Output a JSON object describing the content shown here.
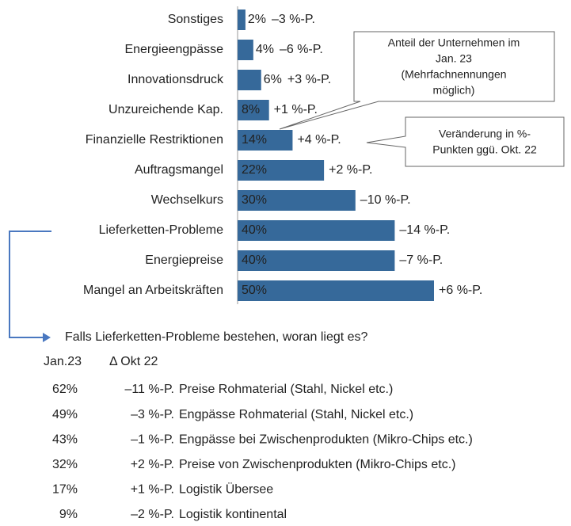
{
  "chart_data": {
    "type": "bar",
    "orientation": "horizontal",
    "categories": [
      "Sonstiges",
      "Energieengpässe",
      "Innovationsdruck",
      "Unzureichende Kap.",
      "Finanzielle Restriktionen",
      "Auftragsmangel",
      "Wechselkurs",
      "Lieferketten-Probleme",
      "Energiepreise",
      "Mangel an Arbeitskräften"
    ],
    "values": [
      2,
      4,
      6,
      8,
      14,
      22,
      30,
      40,
      40,
      50
    ],
    "value_labels": [
      "2%",
      "4%",
      "6%",
      "8%",
      "14%",
      "22%",
      "30%",
      "40%",
      "40%",
      "50%"
    ],
    "changes": [
      -3,
      -6,
      3,
      1,
      4,
      2,
      -10,
      -14,
      -7,
      6
    ],
    "change_labels": [
      "–3 %-P.",
      "–6 %-P.",
      "+3 %-P.",
      "+1 %-P.",
      "+4 %-P.",
      "+2 %-P.",
      "–10 %-P.",
      "–14 %-P.",
      "–7 %-P.",
      "+6 %-P."
    ],
    "color": "#36699a",
    "increase_color": "#e8201c",
    "decrease_color": "#1ba34b",
    "xlim": [
      0,
      50
    ],
    "annotations": [
      {
        "lines": [
          "Anteil der Unternehmen im",
          "Jan. 23",
          "(Mehrfachnennungen",
          "möglich)"
        ]
      },
      {
        "lines": [
          "Veränderung in %-",
          "Punkten ggü. Okt. 22"
        ]
      }
    ]
  },
  "table": {
    "title": "Falls Lieferketten-Probleme bestehen, woran liegt es?",
    "header": [
      "Jan.23",
      "Δ Okt 22"
    ],
    "rows": [
      [
        "62%",
        "–11 %-P.",
        "Preise Rohmaterial (Stahl, Nickel etc.)"
      ],
      [
        "49%",
        "–3 %-P.",
        "Engpässe Rohmaterial (Stahl, Nickel etc.)"
      ],
      [
        "43%",
        "–1 %-P.",
        "Engpässe bei Zwischenprodukten (Mikro-Chips etc.)"
      ],
      [
        "32%",
        "+2 %-P.",
        "Preise von Zwischenprodukten (Mikro-Chips etc.)"
      ],
      [
        "17%",
        "+1 %-P.",
        "Logistik Übersee"
      ],
      [
        "9%",
        "–2 %-P.",
        "Logistik kontinental"
      ]
    ]
  }
}
